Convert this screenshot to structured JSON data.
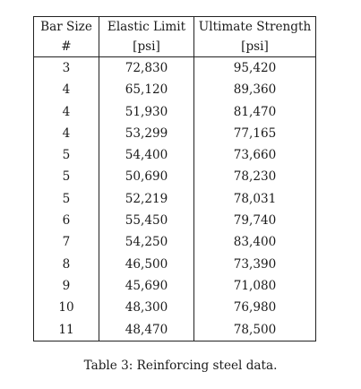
{
  "table": {
    "headers": [
      {
        "line1": "Bar Size",
        "line2": "#"
      },
      {
        "line1": "Elastic Limit",
        "line2": "[psi]"
      },
      {
        "line1": "Ultimate Strength",
        "line2": "[psi]"
      }
    ],
    "rows": [
      [
        "3",
        "72,830",
        "95,420"
      ],
      [
        "4",
        "65,120",
        "89,360"
      ],
      [
        "4",
        "51,930",
        "81,470"
      ],
      [
        "4",
        "53,299",
        "77,165"
      ],
      [
        "5",
        "54,400",
        "73,660"
      ],
      [
        "5",
        "50,690",
        "78,230"
      ],
      [
        "5",
        "52,219",
        "78,031"
      ],
      [
        "6",
        "55,450",
        "79,740"
      ],
      [
        "7",
        "54,250",
        "83,400"
      ],
      [
        "8",
        "46,500",
        "73,390"
      ],
      [
        "9",
        "45,690",
        "71,080"
      ],
      [
        "10",
        "48,300",
        "76,980"
      ],
      [
        "11",
        "48,470",
        "78,500"
      ]
    ]
  },
  "caption": "Table 3: Reinforcing steel data."
}
